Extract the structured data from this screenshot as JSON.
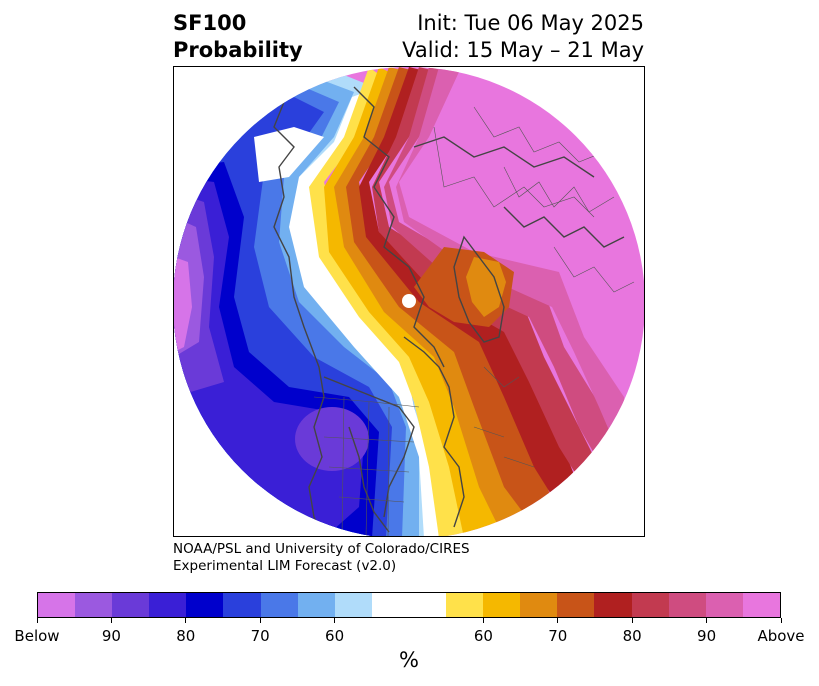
{
  "title": {
    "left_line1": "SF100",
    "left_line2": "Probability",
    "right_line1": "Init: Tue 06 May 2025",
    "right_line2": "Valid: 15 May – 21 May"
  },
  "credit": {
    "line1": "NOAA/PSL and University of Colorado/CIRES",
    "line2": "Experimental LIM Forecast (v2.0)"
  },
  "colorbar": {
    "colors": [
      "#d674e8",
      "#9b59e0",
      "#6a3ad8",
      "#3a1fd6",
      "#0000cc",
      "#2a40dc",
      "#4a78e8",
      "#72b0f0",
      "#b0dcfa",
      "#ffffff",
      "#ffffff",
      "#ffe14a",
      "#f5b800",
      "#e08a10",
      "#c85418",
      "#b02020",
      "#c23a50",
      "#cf4c80",
      "#db60b0",
      "#e876de"
    ],
    "ticks": [
      {
        "label": "Below",
        "index": 0
      },
      {
        "label": "90",
        "index": 2
      },
      {
        "label": "80",
        "index": 4
      },
      {
        "label": "70",
        "index": 6
      },
      {
        "label": "60",
        "index": 8
      },
      {
        "label": "60",
        "index": 12
      },
      {
        "label": "70",
        "index": 14
      },
      {
        "label": "80",
        "index": 16
      },
      {
        "label": "90",
        "index": 18
      },
      {
        "label": "Above",
        "index": 20
      }
    ],
    "units": "%"
  },
  "map_colors": {
    "above_high": "#e876de",
    "above_90": "#db60b0",
    "above_85": "#cf4c80",
    "above_80": "#c23a50",
    "above_75": "#b02020",
    "above_70": "#c85418",
    "above_65": "#e08a10",
    "above_60": "#f5b800",
    "above_55": "#ffe14a",
    "below_55": "#b0dcfa",
    "below_60": "#72b0f0",
    "below_65": "#4a78e8",
    "below_70": "#2a40dc",
    "below_75": "#0000cc",
    "below_80": "#3a1fd6",
    "below_85": "#6a3ad8",
    "below_90": "#9b59e0",
    "below_low": "#d674e8",
    "coast": "#444444"
  }
}
